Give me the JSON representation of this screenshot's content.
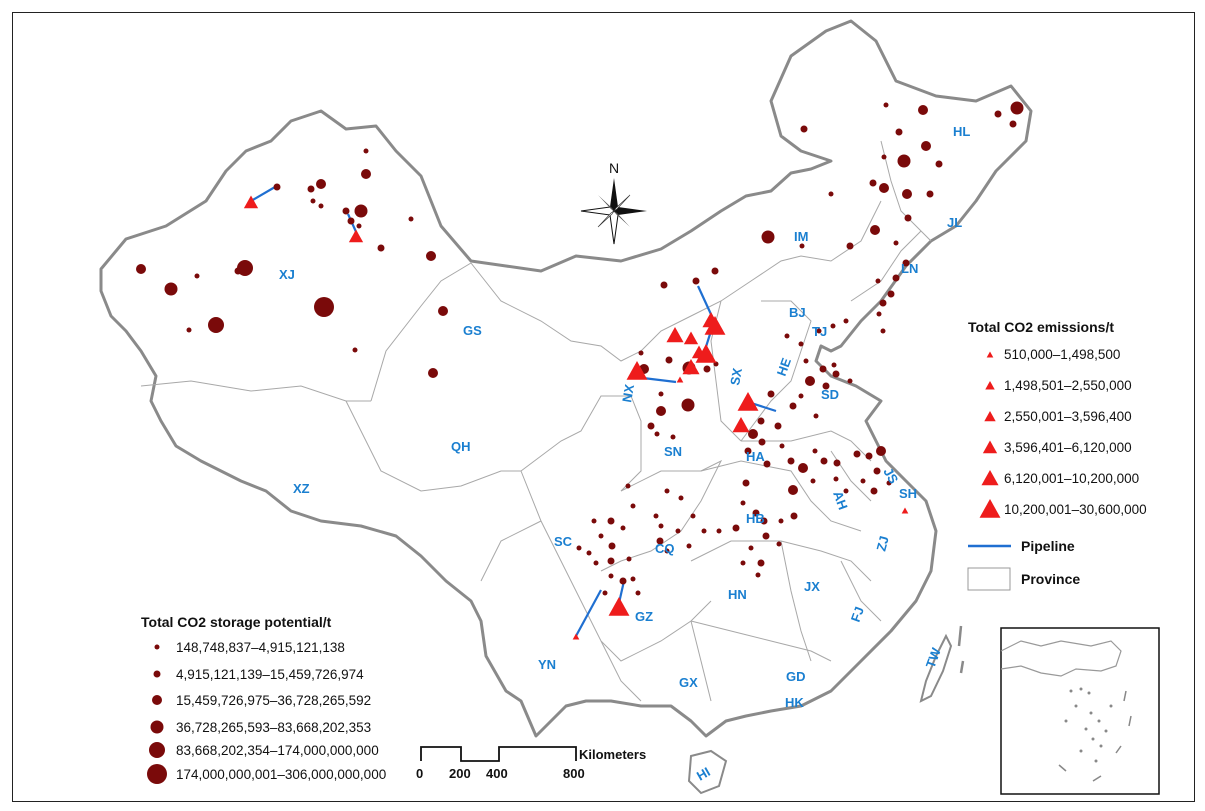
{
  "province_labels": [
    {
      "code": "XJ"
    },
    {
      "code": "XZ"
    },
    {
      "code": "QH"
    },
    {
      "code": "GS"
    },
    {
      "code": "IM"
    },
    {
      "code": "HL"
    },
    {
      "code": "JL"
    },
    {
      "code": "LN"
    },
    {
      "code": "BJ"
    },
    {
      "code": "TJ"
    },
    {
      "code": "HE"
    },
    {
      "code": "SX"
    },
    {
      "code": "SD"
    },
    {
      "code": "NX"
    },
    {
      "code": "SN"
    },
    {
      "code": "HA"
    },
    {
      "code": "AH"
    },
    {
      "code": "JS"
    },
    {
      "code": "SH"
    },
    {
      "code": "HB"
    },
    {
      "code": "SC"
    },
    {
      "code": "CQ"
    },
    {
      "code": "GZ"
    },
    {
      "code": "YN"
    },
    {
      "code": "HN"
    },
    {
      "code": "JX"
    },
    {
      "code": "ZJ"
    },
    {
      "code": "FJ"
    },
    {
      "code": "TW"
    },
    {
      "code": "GD"
    },
    {
      "code": "HK"
    },
    {
      "code": "GX"
    },
    {
      "code": "HI"
    }
  ],
  "north_arrow": {
    "label": "N"
  },
  "emissions_legend": {
    "title": "Total CO2 emissions/t",
    "classes": [
      "510,000–1,498,500",
      "1,498,501–2,550,000",
      "2,550,001–3,596,400",
      "3,596,401–6,120,000",
      "6,120,001–10,200,000",
      "10,200,001–30,600,000"
    ],
    "pipeline_label": "Pipeline",
    "province_label": "Province"
  },
  "storage_legend": {
    "title": "Total CO2 storage potential/t",
    "classes": [
      "148,748,837–4,915,121,138",
      "4,915,121,139–15,459,726,974",
      "15,459,726,975–36,728,265,592",
      "36,728,265,593–83,668,202,353",
      "83,668,202,354–174,000,000,000",
      "174,000,000,001–306,000,000,000"
    ]
  },
  "scale_bar": {
    "unit": "Kilometers",
    "ticks": [
      "0",
      "200",
      "400",
      "800"
    ]
  },
  "colors": {
    "storage_marker": "#7a0a0a",
    "emission_marker": "#ee1c1c",
    "pipeline": "#1f6fd1",
    "label": "#1a7fd0",
    "border": "#8a8a8a"
  }
}
